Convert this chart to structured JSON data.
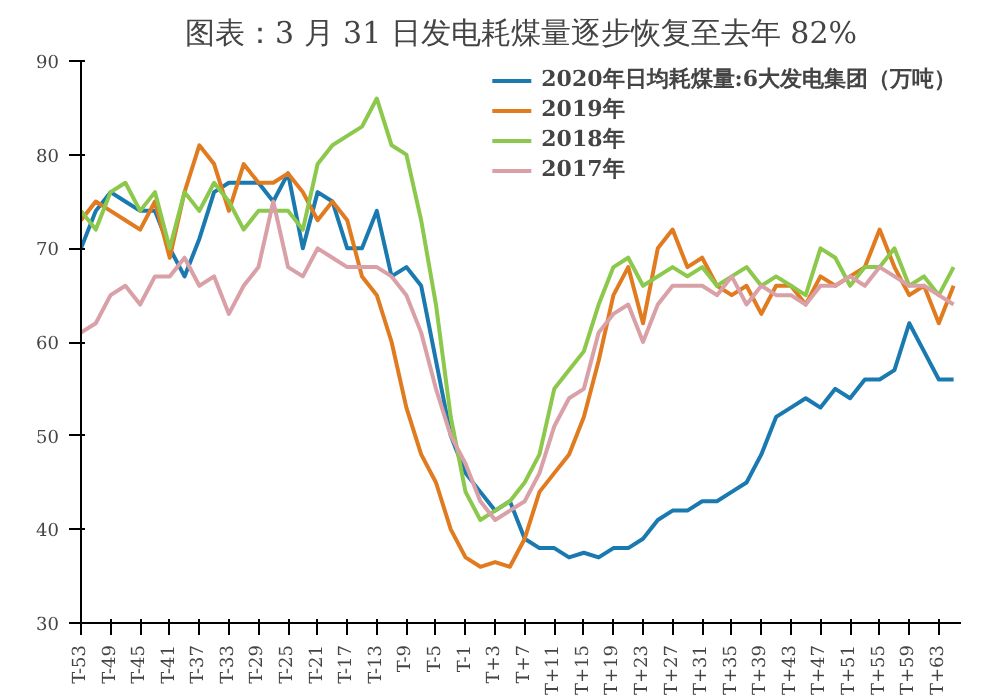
{
  "chart_data": {
    "type": "line",
    "title": "图表：3 月 31 日发电耗煤量逐步恢复至去年 82%",
    "categories": [
      "T-53",
      null,
      "T-49",
      null,
      "T-45",
      null,
      "T-41",
      null,
      "T-37",
      null,
      "T-33",
      null,
      "T-29",
      null,
      "T-25",
      null,
      "T-21",
      null,
      "T-17",
      null,
      "T-13",
      null,
      "T-9",
      null,
      "T-5",
      null,
      "T-1",
      null,
      "T+3",
      null,
      "T+7",
      null,
      "T+11",
      null,
      "T+15",
      null,
      "T+19",
      null,
      "T+23",
      null,
      "T+27",
      null,
      "T+31",
      null,
      "T+35",
      null,
      "T+39",
      null,
      "T+43",
      null,
      "T+47",
      null,
      "T+51",
      null,
      "T+55",
      null,
      "T+59",
      null,
      "T+63",
      null
    ],
    "series": [
      {
        "name": "2020年日均耗煤量:6大发电集团（万吨）",
        "color": "#1a7ab0",
        "values": [
          70,
          74,
          76,
          75,
          74,
          74,
          70,
          67,
          71,
          76,
          77,
          77,
          77,
          75,
          78,
          70,
          76,
          75,
          70,
          70,
          74,
          67,
          68,
          66,
          58,
          50,
          46,
          44,
          42,
          43,
          39,
          38,
          38,
          37,
          37.5,
          37,
          38,
          38,
          39,
          41,
          42,
          42,
          43,
          43,
          44,
          45,
          48,
          52,
          53,
          54,
          53,
          55,
          54,
          56,
          56,
          57,
          62,
          59,
          56,
          56
        ]
      },
      {
        "name": "2019年",
        "color": "#e07b20",
        "values": [
          73,
          75,
          74,
          73,
          72,
          75,
          69,
          76,
          81,
          79,
          74,
          79,
          77,
          77,
          78,
          76,
          73,
          75,
          73,
          67,
          65,
          60,
          53,
          48,
          45,
          40,
          37,
          36,
          36.5,
          36,
          39,
          44,
          46,
          48,
          52,
          58,
          65,
          68,
          62,
          70,
          72,
          68,
          69,
          66,
          65,
          66,
          63,
          66,
          66,
          64,
          67,
          66,
          67,
          68,
          72,
          68,
          65,
          66,
          62,
          66
        ]
      },
      {
        "name": "2018年",
        "color": "#8cc84b",
        "values": [
          74,
          72,
          76,
          77,
          74,
          76,
          70,
          76,
          74,
          77,
          75,
          72,
          74,
          74,
          74,
          72,
          79,
          81,
          82,
          83,
          86,
          81,
          80,
          73,
          64,
          52,
          44,
          41,
          42,
          43,
          45,
          48,
          55,
          57,
          59,
          64,
          68,
          69,
          66,
          67,
          68,
          67,
          68,
          66,
          67,
          68,
          66,
          67,
          66,
          65,
          70,
          69,
          66,
          68,
          68,
          70,
          66,
          67,
          65,
          68
        ]
      },
      {
        "name": "2017年",
        "color": "#d9a0a8",
        "values": [
          61,
          62,
          65,
          66,
          64,
          67,
          67,
          69,
          66,
          67,
          63,
          66,
          68,
          75,
          68,
          67,
          70,
          69,
          68,
          68,
          68,
          67,
          65,
          61,
          55,
          50,
          47,
          43,
          41,
          42,
          43,
          46,
          51,
          54,
          55,
          61,
          63,
          64,
          60,
          64,
          66,
          66,
          66,
          65,
          67,
          64,
          66,
          65,
          65,
          64,
          66,
          66,
          67,
          66,
          68,
          67,
          66,
          66,
          65,
          64
        ]
      }
    ],
    "ylim": [
      30,
      90
    ],
    "yticks": [
      30,
      40,
      50,
      60,
      70,
      80,
      90
    ],
    "grid": false,
    "legend": "top right",
    "marker": "none",
    "line_style": "solid"
  }
}
